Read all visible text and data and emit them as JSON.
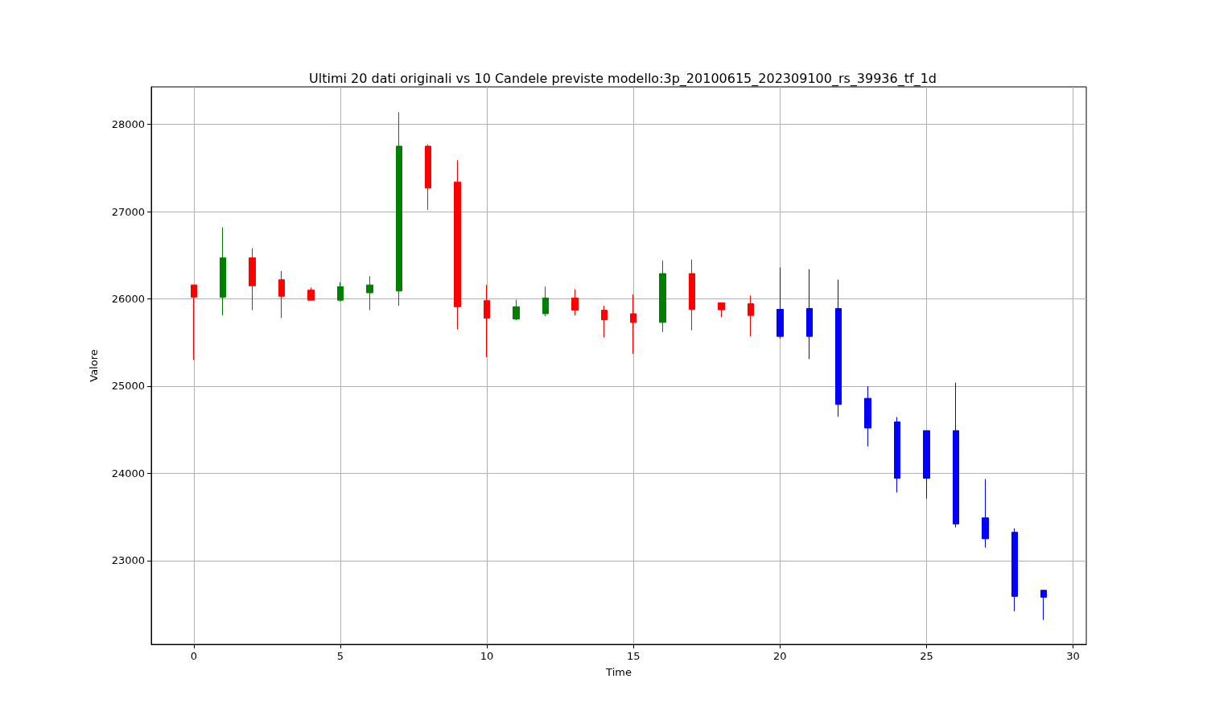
{
  "chart_data": {
    "type": "candlestick",
    "title": "Ultimi 20 dati originali vs 10 Candele previste modello:3p_20100615_202309100_rs_39936_tf_1d",
    "xlabel": "Time",
    "ylabel": "Valore",
    "xlim": [
      -1.45,
      30.45
    ],
    "xticks": [
      0,
      5,
      10,
      15,
      20,
      25,
      30
    ],
    "ylim": [
      22040,
      28430
    ],
    "yticks": [
      23000,
      24000,
      25000,
      26000,
      27000,
      28000
    ],
    "grid": true,
    "series": [
      {
        "x": [
          0,
          1,
          2,
          3,
          4,
          5,
          6,
          7,
          8,
          9,
          10,
          11,
          12,
          13,
          14,
          15,
          16,
          17,
          18,
          19
        ],
        "ohlc": [
          [
            26160,
            26160,
            25300,
            26020
          ],
          [
            26020,
            26820,
            25810,
            26470
          ],
          [
            26470,
            26580,
            25870,
            26150
          ],
          [
            26220,
            26320,
            25780,
            26030
          ],
          [
            26100,
            26130,
            25985,
            25985
          ],
          [
            25985,
            26190,
            25970,
            26140
          ],
          [
            26070,
            26260,
            25870,
            26160
          ],
          [
            26090,
            28140,
            25920,
            27750
          ],
          [
            27750,
            27770,
            27020,
            27270
          ],
          [
            27340,
            27590,
            25650,
            25910
          ],
          [
            25980,
            26160,
            25330,
            25780
          ],
          [
            25770,
            25990,
            25755,
            25910
          ],
          [
            25830,
            26140,
            25800,
            26010
          ],
          [
            26010,
            26110,
            25810,
            25870
          ],
          [
            25870,
            25920,
            25560,
            25760
          ],
          [
            25830,
            26050,
            25370,
            25730
          ],
          [
            25730,
            26440,
            25620,
            26290
          ],
          [
            26290,
            26450,
            25640,
            25880
          ],
          [
            25955,
            25955,
            25790,
            25875
          ],
          [
            25945,
            26040,
            25570,
            25810
          ]
        ],
        "colors": [
          "#ff0000",
          "#008000",
          "#ff0000",
          "#ff0000",
          "#ff0000",
          "#008000",
          "#008000",
          "#008000",
          "#ff0000",
          "#ff0000",
          "#ff0000",
          "#008000",
          "#008000",
          "#ff0000",
          "#ff0000",
          "#ff0000",
          "#008000",
          "#ff0000",
          "#ff0000",
          "#ff0000"
        ]
      },
      {
        "x": [
          20,
          21,
          22,
          23,
          24,
          25,
          26,
          27,
          28,
          29
        ],
        "ohlc": [
          [
            25880,
            26360,
            25545,
            25570
          ],
          [
            25890,
            26340,
            25310,
            25570
          ],
          [
            25890,
            26220,
            24650,
            24790
          ],
          [
            24860,
            25000,
            24310,
            24520
          ],
          [
            24590,
            24645,
            23780,
            23945
          ],
          [
            24490,
            24490,
            23710,
            23945
          ],
          [
            24490,
            25040,
            23380,
            23420
          ],
          [
            23490,
            23935,
            23150,
            23250
          ],
          [
            23325,
            23370,
            22420,
            22590
          ],
          [
            22660,
            22660,
            22320,
            22580
          ]
        ],
        "color": "#0000ff"
      }
    ]
  }
}
